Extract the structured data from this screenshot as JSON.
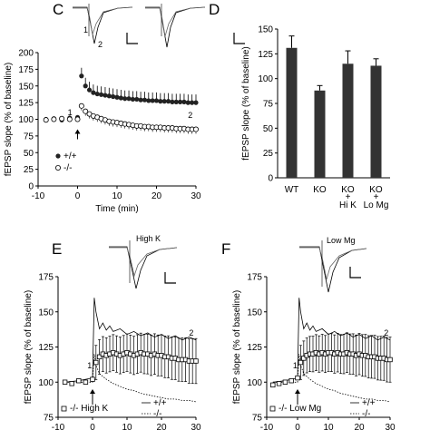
{
  "panels": {
    "c": "C",
    "d": "D",
    "e": "E",
    "f": "F"
  },
  "chart_data": [
    {
      "panel": "C",
      "type": "scatter",
      "xlabel": "Time (min)",
      "ylabel": "fEPSP slope (% of baseline)",
      "xlim": [
        -10,
        30
      ],
      "ylim": [
        0,
        200
      ],
      "xticks": [
        -10,
        0,
        10,
        20,
        30
      ],
      "yticks": [
        0,
        25,
        50,
        75,
        100,
        125,
        150,
        175,
        200
      ],
      "legend": [
        "+/+",
        "-/-"
      ],
      "labels": {
        "one": "1",
        "two": "2"
      },
      "series": [
        {
          "name": "+/+",
          "x": [
            -8,
            -6,
            -4,
            -2,
            0,
            1,
            2,
            3,
            4,
            5,
            6,
            7,
            8,
            9,
            10,
            11,
            12,
            13,
            14,
            15,
            16,
            17,
            18,
            19,
            20,
            21,
            22,
            23,
            24,
            25,
            26,
            27,
            28,
            29,
            30
          ],
          "y": [
            100,
            101,
            99,
            102,
            103,
            165,
            150,
            144,
            140,
            138,
            137,
            136,
            135,
            134,
            133,
            132,
            131,
            131,
            130,
            130,
            129,
            129,
            128,
            128,
            128,
            127,
            127,
            127,
            126,
            126,
            126,
            126,
            125,
            125,
            125
          ]
        },
        {
          "name": "-/-",
          "x": [
            -8,
            -6,
            -4,
            -2,
            0,
            1,
            2,
            3,
            4,
            5,
            6,
            7,
            8,
            9,
            10,
            11,
            12,
            13,
            14,
            15,
            16,
            17,
            18,
            19,
            20,
            21,
            22,
            23,
            24,
            25,
            26,
            27,
            28,
            29,
            30
          ],
          "y": [
            99,
            100,
            101,
            100,
            100,
            120,
            112,
            108,
            105,
            103,
            101,
            99,
            97,
            96,
            95,
            94,
            93,
            92,
            91,
            90,
            90,
            89,
            89,
            88,
            88,
            88,
            87,
            87,
            87,
            86,
            86,
            86,
            85,
            85,
            85
          ]
        }
      ]
    },
    {
      "panel": "D",
      "type": "bar",
      "ylabel": "fEPSP slope (% of baseline)",
      "ylim": [
        0,
        150
      ],
      "yticks": [
        0,
        25,
        50,
        75,
        100,
        125,
        150
      ],
      "categories": [
        "WT",
        "KO",
        "KO\n+\nHi K",
        "KO\n+\nLo Mg"
      ],
      "values": [
        131,
        88,
        115,
        113
      ],
      "errors": [
        12,
        5,
        13,
        7
      ]
    },
    {
      "panel": "E",
      "type": "line",
      "xlabel": "",
      "ylabel": "fEPSP slope (% of baseline)",
      "xlim": [
        -10,
        30
      ],
      "ylim": [
        75,
        175
      ],
      "xticks": [
        -10,
        0,
        10,
        20,
        30
      ],
      "yticks": [
        75,
        100,
        125,
        150,
        175
      ],
      "trace_label": "High K",
      "legend": {
        "symbol_text": "-/- High K",
        "plus": "+/+",
        "minus": "-/-"
      },
      "labels": {
        "one": "1",
        "two": "2"
      },
      "series": [
        {
          "name": "-/- High K",
          "x": [
            -8,
            -6,
            -4,
            -2,
            0,
            1,
            2,
            3,
            4,
            5,
            6,
            7,
            8,
            9,
            10,
            11,
            12,
            13,
            14,
            15,
            16,
            17,
            18,
            19,
            20,
            21,
            22,
            23,
            24,
            25,
            26,
            27,
            28,
            29,
            30
          ],
          "y": [
            100,
            99,
            101,
            100,
            102,
            114,
            118,
            120,
            119,
            120,
            121,
            120,
            119,
            120,
            121,
            120,
            119,
            120,
            121,
            120,
            120,
            119,
            120,
            119,
            119,
            118,
            118,
            117,
            117,
            116,
            116,
            116,
            115,
            115,
            115
          ]
        },
        {
          "name": "+/+",
          "x": [
            -8,
            -4,
            0,
            0.5,
            1,
            2,
            3,
            4,
            5,
            6,
            8,
            10,
            12,
            14,
            16,
            18,
            20,
            22,
            24,
            26,
            28,
            30
          ],
          "y": [
            100,
            101,
            103,
            160,
            150,
            138,
            142,
            137,
            140,
            136,
            138,
            134,
            136,
            133,
            135,
            132,
            134,
            131,
            133,
            130,
            132,
            130
          ]
        },
        {
          "name": "-/-",
          "x": [
            -8,
            -4,
            0,
            0.5,
            1,
            2,
            4,
            6,
            8,
            10,
            12,
            14,
            16,
            18,
            20,
            22,
            24,
            26,
            28,
            30
          ],
          "y": [
            100,
            100,
            100,
            120,
            112,
            106,
            102,
            99,
            97,
            95,
            94,
            92,
            91,
            90,
            89,
            88,
            88,
            87,
            87,
            86
          ]
        }
      ]
    },
    {
      "panel": "F",
      "type": "line",
      "xlabel": "",
      "ylabel": "fEPSP slope (% of baseline)",
      "xlim": [
        -10,
        30
      ],
      "ylim": [
        75,
        175
      ],
      "xticks": [
        -10,
        0,
        10,
        20,
        30
      ],
      "yticks": [
        75,
        100,
        125,
        150,
        175
      ],
      "trace_label": "Low Mg",
      "legend": {
        "symbol_text": "-/- Low Mg",
        "plus": "+/+",
        "minus": "-/-"
      },
      "labels": {
        "one": "1",
        "two": "2"
      },
      "series": [
        {
          "name": "-/- Low Mg",
          "x": [
            -8,
            -6,
            -4,
            -2,
            0,
            1,
            2,
            3,
            4,
            5,
            6,
            7,
            8,
            9,
            10,
            11,
            12,
            13,
            14,
            15,
            16,
            17,
            18,
            19,
            20,
            21,
            22,
            23,
            24,
            25,
            26,
            27,
            28,
            29,
            30
          ],
          "y": [
            98,
            99,
            100,
            101,
            103,
            114,
            117,
            119,
            120,
            120,
            121,
            120,
            121,
            120,
            121,
            121,
            120,
            121,
            120,
            120,
            121,
            120,
            120,
            119,
            120,
            119,
            119,
            118,
            118,
            118,
            117,
            117,
            117,
            116,
            116
          ]
        },
        {
          "name": "+/+",
          "x": [
            -8,
            -4,
            0,
            0.5,
            1,
            2,
            3,
            4,
            5,
            6,
            8,
            10,
            12,
            14,
            16,
            18,
            20,
            22,
            24,
            26,
            28,
            30
          ],
          "y": [
            100,
            101,
            103,
            160,
            150,
            138,
            142,
            137,
            140,
            136,
            138,
            134,
            136,
            133,
            135,
            132,
            134,
            131,
            133,
            130,
            132,
            130
          ]
        },
        {
          "name": "-/-",
          "x": [
            -8,
            -4,
            0,
            0.5,
            1,
            2,
            4,
            6,
            8,
            10,
            12,
            14,
            16,
            18,
            20,
            22,
            24,
            26,
            28,
            30
          ],
          "y": [
            100,
            100,
            100,
            120,
            112,
            106,
            102,
            99,
            97,
            95,
            94,
            92,
            91,
            90,
            89,
            88,
            88,
            87,
            87,
            86
          ]
        }
      ]
    }
  ]
}
